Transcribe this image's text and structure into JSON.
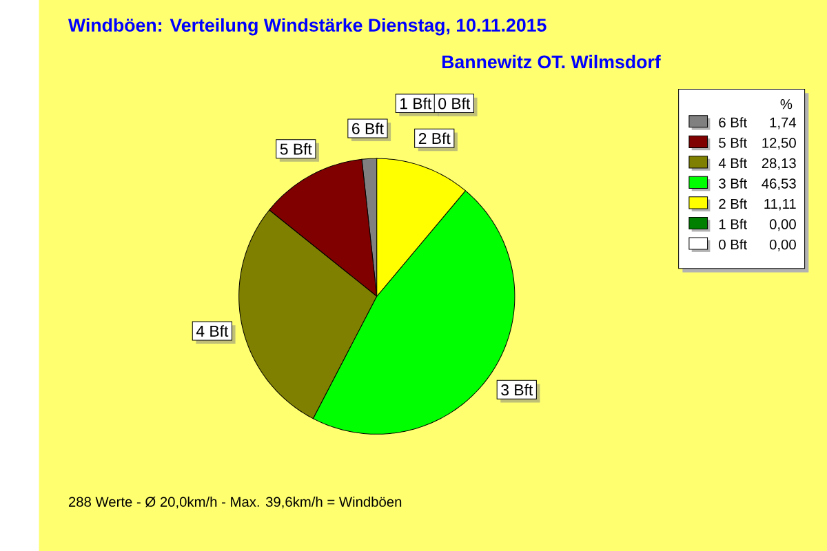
{
  "chart_data": {
    "type": "pie",
    "title": "Windböen: Verteilung Windstärke  Dienstag, 10.11.2015",
    "subtitle": "Bannewitz OT. Wilmsdorf",
    "legend_title": "%",
    "legend": "right",
    "categories": [
      "6 Bft",
      "5 Bft",
      "4 Bft",
      "3 Bft",
      "2 Bft",
      "1 Bft",
      "0 Bft"
    ],
    "values": [
      1.74,
      12.5,
      28.13,
      46.53,
      11.11,
      0.0,
      0.0
    ],
    "value_labels": [
      "1,74",
      "12,50",
      "28,13",
      "46,53",
      "11,11",
      "0,00",
      "0,00"
    ],
    "colors": [
      "#808080",
      "#800000",
      "#808000",
      "#00ff00",
      "#ffff00",
      "#008000",
      "#ffffff"
    ],
    "annotations": [
      "288 Werte   -   Ø 20,0km/h  -  Max. 39,6km/h = Windböen"
    ]
  }
}
